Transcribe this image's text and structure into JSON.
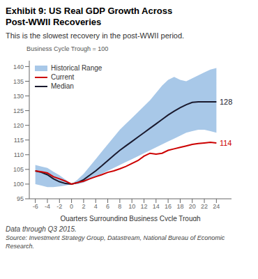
{
  "chart_data": {
    "type": "line",
    "title": "Exhibit 9: US Real GDP Growth Across\nPost-WWII Recoveries",
    "subtitle": "This is the slowest recovery in the post-WWII period.",
    "ylabel": "Business Cycle Trough = 100",
    "xlabel": "Quarters Surrounding Business Cycle Trough",
    "footer": [
      "Data through Q3 2015.",
      "Source: Investment Strategy Group, Datastream, National Bureau of Economic Research."
    ],
    "x": [
      -6,
      -5,
      -4,
      -3,
      -2,
      -1,
      0,
      1,
      2,
      3,
      4,
      5,
      6,
      7,
      8,
      9,
      10,
      11,
      12,
      13,
      14,
      15,
      16,
      17,
      18,
      19,
      20,
      21,
      22,
      23,
      24
    ],
    "xlim": [
      -7,
      26.5
    ],
    "ylim": [
      95,
      142
    ],
    "xticks": [
      -6,
      -4,
      -2,
      0,
      2,
      4,
      6,
      8,
      10,
      12,
      14,
      16,
      18,
      20,
      22,
      24
    ],
    "yticks": [
      95,
      100,
      105,
      110,
      115,
      120,
      125,
      130,
      135,
      140
    ],
    "grid": false,
    "legend": "upper left",
    "series": [
      {
        "name": "Historical Range",
        "type": "band",
        "color": "#a8c8e8",
        "lower": [
          100.0,
          99.5,
          99.0,
          99.0,
          99.2,
          99.5,
          100.0,
          100.0,
          100.5,
          101.5,
          102.5,
          103.5,
          104.5,
          105.5,
          106.5,
          107.5,
          108.5,
          109.5,
          110.5,
          111.5,
          112.5,
          113.5,
          114.5,
          115.5,
          116.5,
          117.5,
          118.0,
          118.5,
          118.5,
          118.0,
          117.5
        ],
        "upper": [
          106.5,
          106.0,
          105.5,
          104.2,
          103.0,
          101.5,
          100.0,
          101.5,
          103.5,
          106.0,
          108.5,
          111.0,
          113.5,
          116.0,
          118.5,
          120.5,
          122.5,
          124.5,
          126.5,
          128.5,
          131.0,
          133.5,
          135.5,
          136.5,
          135.5,
          135.0,
          136.0,
          137.0,
          138.0,
          139.0,
          139.5
        ]
      },
      {
        "name": "Current",
        "type": "line",
        "color": "#cc0000",
        "values": [
          104.5,
          104.2,
          103.8,
          102.5,
          101.8,
          101.0,
          100.0,
          100.5,
          101.0,
          101.8,
          102.5,
          103.2,
          104.0,
          104.5,
          105.2,
          106.0,
          107.0,
          108.0,
          109.5,
          110.5,
          110.2,
          110.5,
          111.5,
          112.0,
          112.5,
          113.0,
          113.5,
          113.8,
          114.0,
          114.2,
          114.0
        ]
      },
      {
        "name": "Median",
        "type": "line",
        "color": "#1a1a2e",
        "values": [
          104.5,
          104.0,
          103.2,
          101.8,
          100.8,
          100.2,
          100.0,
          100.5,
          101.5,
          103.0,
          104.5,
          106.2,
          108.0,
          109.8,
          111.5,
          113.0,
          114.5,
          116.0,
          117.5,
          119.0,
          120.5,
          122.0,
          123.5,
          124.8,
          126.0,
          127.0,
          127.8,
          128.0,
          128.0,
          128.0,
          128.0
        ]
      }
    ],
    "annotations": [
      {
        "text": "128",
        "x": 24.3,
        "y": 128.0,
        "color": "#1a1a2e"
      },
      {
        "text": "114",
        "x": 24.3,
        "y": 114.0,
        "color": "#cc0000"
      }
    ]
  }
}
